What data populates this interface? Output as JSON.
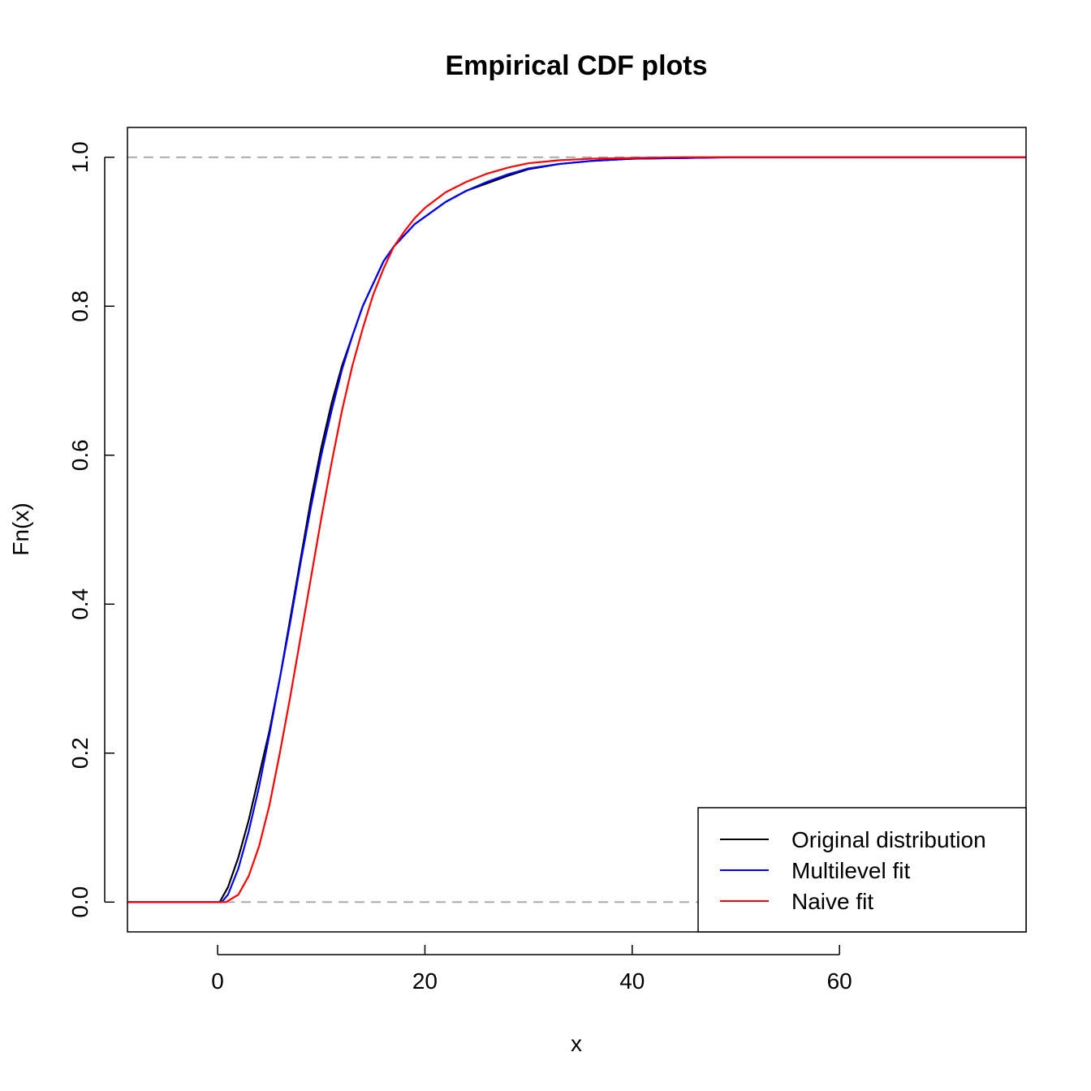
{
  "chart_data": {
    "type": "line",
    "title": "Empirical CDF plots",
    "xlabel": "x",
    "ylabel": "Fn(x)",
    "xlim": [
      -8.7,
      78
    ],
    "ylim": [
      -0.04,
      1.04
    ],
    "x_ticks": [
      0,
      20,
      40,
      60
    ],
    "y_ticks": [
      0.0,
      0.2,
      0.4,
      0.6,
      0.8,
      1.0
    ],
    "x_tick_labels": [
      "0",
      "20",
      "40",
      "60"
    ],
    "y_tick_labels": [
      "0.0",
      "0.2",
      "0.4",
      "0.6",
      "0.8",
      "1.0"
    ],
    "reference_lines": [
      0,
      1
    ],
    "reference_line_color": "#aaaaaa",
    "grid": false,
    "legend_position": "bottom-right",
    "series": [
      {
        "name": "Original distribution",
        "color": "#000000",
        "points": [
          [
            -8.7,
            0
          ],
          [
            0.2,
            0
          ],
          [
            1,
            0.02
          ],
          [
            2,
            0.06
          ],
          [
            3,
            0.11
          ],
          [
            4,
            0.17
          ],
          [
            5,
            0.23
          ],
          [
            6,
            0.3
          ],
          [
            7,
            0.38
          ],
          [
            8,
            0.46
          ],
          [
            9,
            0.54
          ],
          [
            10,
            0.61
          ],
          [
            11,
            0.67
          ],
          [
            12,
            0.72
          ],
          [
            13,
            0.76
          ],
          [
            14,
            0.8
          ],
          [
            15,
            0.83
          ],
          [
            16,
            0.86
          ],
          [
            17,
            0.88
          ],
          [
            18,
            0.895
          ],
          [
            19,
            0.91
          ],
          [
            20,
            0.92
          ],
          [
            22,
            0.94
          ],
          [
            24,
            0.955
          ],
          [
            26,
            0.965
          ],
          [
            28,
            0.975
          ],
          [
            30,
            0.984
          ],
          [
            33,
            0.991
          ],
          [
            36,
            0.995
          ],
          [
            40,
            0.998
          ],
          [
            45,
            0.999
          ],
          [
            50,
            1
          ],
          [
            78,
            1
          ]
        ]
      },
      {
        "name": "Multilevel fit",
        "color": "#0000ff",
        "points": [
          [
            -8.7,
            0
          ],
          [
            0.4,
            0
          ],
          [
            1,
            0.01
          ],
          [
            2,
            0.045
          ],
          [
            3,
            0.095
          ],
          [
            4,
            0.155
          ],
          [
            5,
            0.225
          ],
          [
            6,
            0.3
          ],
          [
            7,
            0.375
          ],
          [
            8,
            0.455
          ],
          [
            9,
            0.53
          ],
          [
            10,
            0.6
          ],
          [
            11,
            0.66
          ],
          [
            12,
            0.715
          ],
          [
            13,
            0.76
          ],
          [
            14,
            0.8
          ],
          [
            15,
            0.83
          ],
          [
            16,
            0.86
          ],
          [
            17,
            0.88
          ],
          [
            18,
            0.895
          ],
          [
            19,
            0.91
          ],
          [
            20,
            0.92
          ],
          [
            22,
            0.94
          ],
          [
            24,
            0.955
          ],
          [
            26,
            0.967
          ],
          [
            28,
            0.977
          ],
          [
            30,
            0.985
          ],
          [
            33,
            0.991
          ],
          [
            36,
            0.995
          ],
          [
            40,
            0.998
          ],
          [
            45,
            0.999
          ],
          [
            50,
            1
          ],
          [
            78,
            1
          ]
        ]
      },
      {
        "name": "Naive fit",
        "color": "#ff0000",
        "points": [
          [
            -8.7,
            0
          ],
          [
            0.8,
            0
          ],
          [
            2,
            0.01
          ],
          [
            3,
            0.035
          ],
          [
            4,
            0.075
          ],
          [
            5,
            0.13
          ],
          [
            6,
            0.2
          ],
          [
            7,
            0.275
          ],
          [
            8,
            0.355
          ],
          [
            9,
            0.435
          ],
          [
            10,
            0.515
          ],
          [
            11,
            0.59
          ],
          [
            12,
            0.66
          ],
          [
            13,
            0.72
          ],
          [
            14,
            0.77
          ],
          [
            15,
            0.815
          ],
          [
            16,
            0.85
          ],
          [
            17,
            0.88
          ],
          [
            18,
            0.9
          ],
          [
            19,
            0.918
          ],
          [
            20,
            0.932
          ],
          [
            22,
            0.953
          ],
          [
            24,
            0.967
          ],
          [
            26,
            0.978
          ],
          [
            28,
            0.986
          ],
          [
            30,
            0.992
          ],
          [
            33,
            0.996
          ],
          [
            36,
            0.998
          ],
          [
            40,
            0.999
          ],
          [
            45,
            1
          ],
          [
            78,
            1
          ]
        ]
      }
    ]
  }
}
